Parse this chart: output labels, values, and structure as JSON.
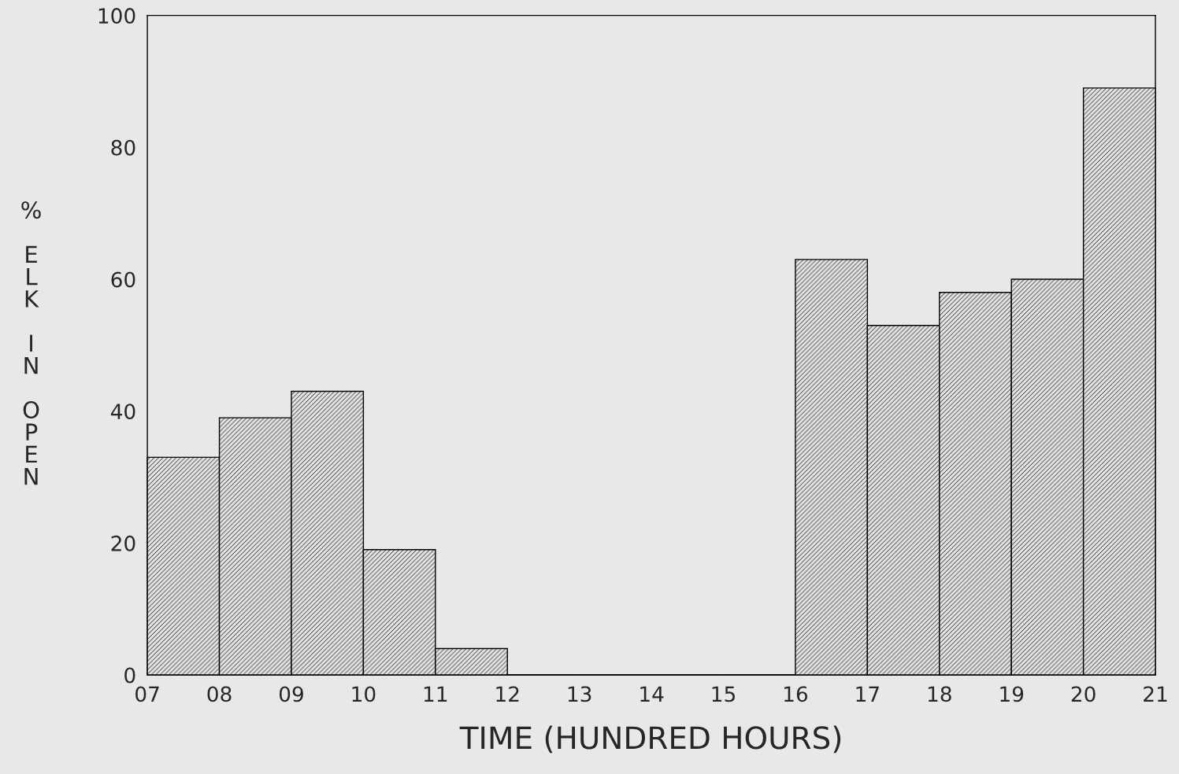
{
  "chart_data": {
    "type": "histogram",
    "xlabel": "TIME (HUNDRED HOURS)",
    "ylabel": "% ELK IN OPEN",
    "bins": [
      7,
      8,
      9,
      10,
      11,
      12,
      13,
      14,
      15,
      16,
      17,
      18,
      19,
      20,
      21
    ],
    "values": [
      33,
      39,
      43,
      19,
      4,
      0,
      0,
      0,
      0,
      63,
      53,
      58,
      60,
      89
    ],
    "color": "#000000",
    "xlim": [
      7,
      21
    ],
    "xticks": [
      {
        "value": 7,
        "label": "07"
      },
      {
        "value": 8,
        "label": "08"
      },
      {
        "value": 9,
        "label": "09"
      },
      {
        "value": 10,
        "label": "10"
      },
      {
        "value": 11,
        "label": "11"
      },
      {
        "value": 12,
        "label": "12"
      },
      {
        "value": 13,
        "label": "13"
      },
      {
        "value": 14,
        "label": "14"
      },
      {
        "value": 15,
        "label": "15"
      },
      {
        "value": 16,
        "label": "16"
      },
      {
        "value": 17,
        "label": "17"
      },
      {
        "value": 18,
        "label": "18"
      },
      {
        "value": 19,
        "label": "19"
      },
      {
        "value": 20,
        "label": "20"
      },
      {
        "value": 21,
        "label": "21"
      }
    ],
    "ylim": [
      0,
      100
    ],
    "yticks": [
      0,
      20,
      40,
      60,
      80,
      100
    ],
    "grid": false
  }
}
